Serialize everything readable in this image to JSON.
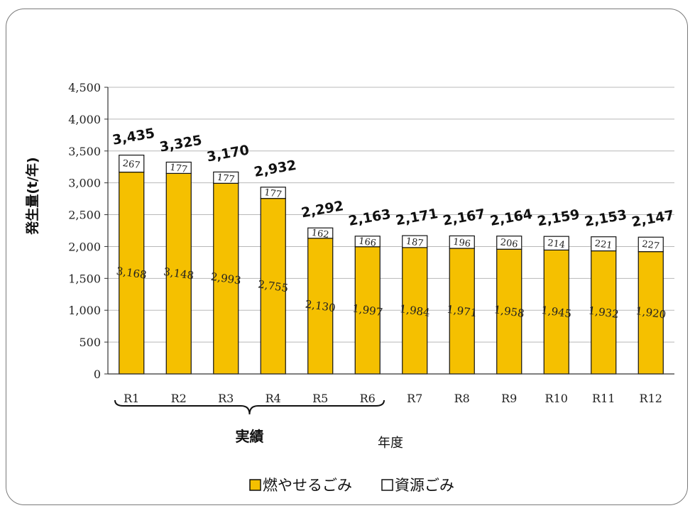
{
  "chart_data": {
    "type": "bar",
    "stacked": true,
    "categories": [
      "R1",
      "R2",
      "R3",
      "R4",
      "R5",
      "R6",
      "R7",
      "R8",
      "R9",
      "R10",
      "R11",
      "R12"
    ],
    "series": [
      {
        "name": "燃やせるごみ",
        "color": "#f5c000",
        "values": [
          3168,
          3148,
          2993,
          2755,
          2130,
          1997,
          1984,
          1971,
          1958,
          1945,
          1932,
          1920
        ],
        "labels": [
          "3,168",
          "3,148",
          "2,993",
          "2,755",
          "2,130",
          "1,997",
          "1,984",
          "1,971",
          "1,958",
          "1,945",
          "1,932",
          "1,920"
        ]
      },
      {
        "name": "資源ごみ",
        "color": "#ffffff",
        "values": [
          267,
          177,
          177,
          177,
          162,
          166,
          187,
          196,
          206,
          214,
          221,
          227
        ],
        "labels": [
          "267",
          "177",
          "177",
          "177",
          "162",
          "166",
          "187",
          "196",
          "206",
          "214",
          "221",
          "227"
        ]
      }
    ],
    "totals": [
      "3,435",
      "3,325",
      "3,170",
      "2,932",
      "2,292",
      "2,163",
      "2,171",
      "2,167",
      "2,164",
      "2,159",
      "2,153",
      "2,147"
    ],
    "ylabel": "発生量(t/年)",
    "xlabel": "年度",
    "ylim": [
      0,
      4500
    ],
    "yticks": [
      0,
      500,
      1000,
      1500,
      2000,
      2500,
      3000,
      3500,
      4000,
      4500
    ],
    "ytick_labels": [
      "0",
      "500",
      "1,000",
      "1,500",
      "2,000",
      "2,500",
      "3,000",
      "3,500",
      "4,000",
      "4,500"
    ],
    "grid": true,
    "legend_position": "bottom",
    "annotation": {
      "text": "実績",
      "range": [
        "R1",
        "R6"
      ]
    }
  }
}
